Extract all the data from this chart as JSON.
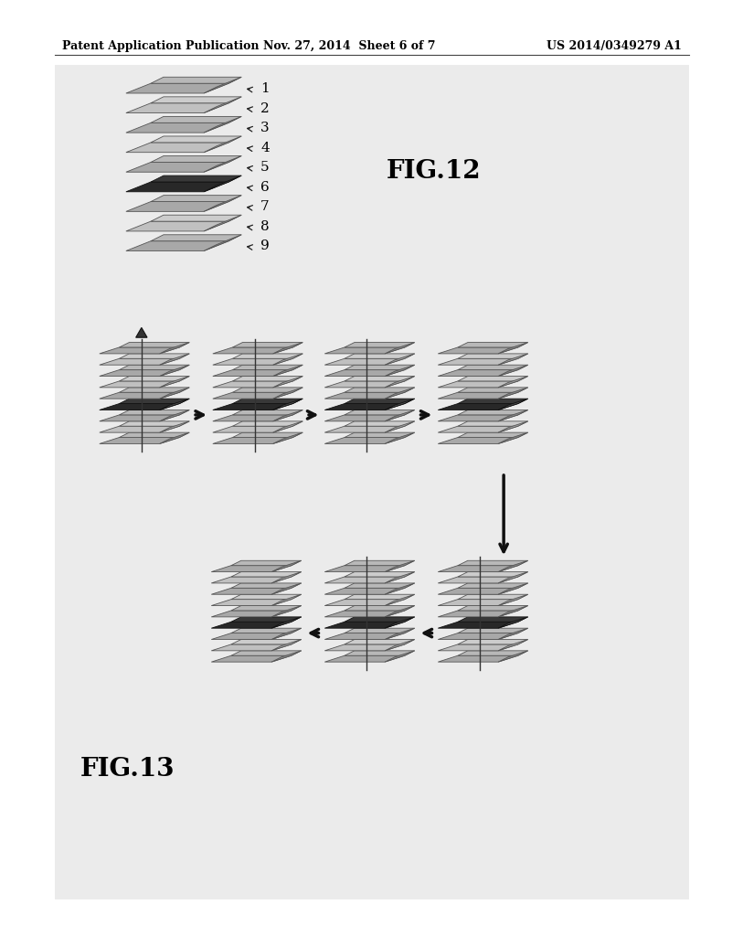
{
  "header_left": "Patent Application Publication",
  "header_mid": "Nov. 27, 2014  Sheet 6 of 7",
  "header_right": "US 2014/0349279 A1",
  "fig12_label": "FIG.12",
  "fig13_label": "FIG.13",
  "page_color": "#ffffff",
  "bg_panel_color": "#e8e8e8",
  "layer_gray1": "#a8a8a8",
  "layer_gray2": "#c0c0c0",
  "layer_dark": "#282828",
  "layer_dark2": "#484848",
  "edge_color": "#555555",
  "edge_dark": "#111111",
  "arrow_color": "#111111",
  "header_fontsize": 9,
  "fig_label_fontsize": 20,
  "layer_label_fontsize": 11
}
